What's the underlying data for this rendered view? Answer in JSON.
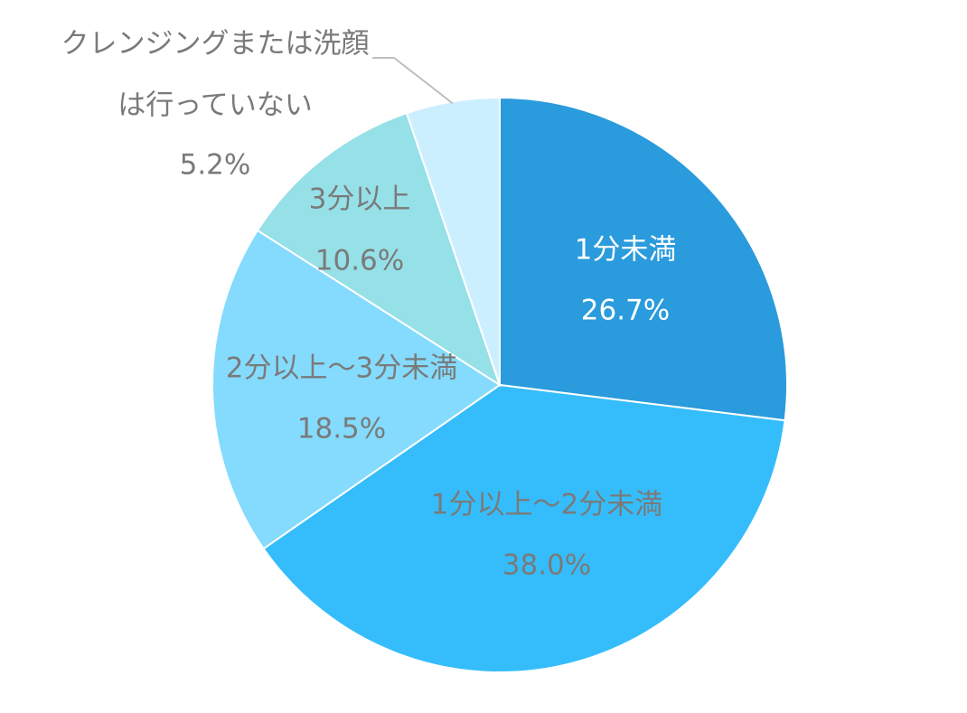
{
  "chart_data": {
    "type": "pie",
    "title": "",
    "start_angle_deg": 0,
    "direction": "clockwise",
    "slices": [
      {
        "label": "1分未満",
        "value": 26.7,
        "value_label": "26.7%",
        "color": "#2a9bdc",
        "label_color": "#ffffff"
      },
      {
        "label": "1分以上～2分未満",
        "value": 38.0,
        "value_label": "38.0%",
        "color": "#35bdfb",
        "label_color": "#7a7a7a"
      },
      {
        "label": "2分以上～3分未満",
        "value": 18.5,
        "value_label": "18.5%",
        "color": "#84dbfd",
        "label_color": "#7a7a7a"
      },
      {
        "label": "3分以上",
        "value": 10.6,
        "value_label": "10.6%",
        "color": "#96e0e8",
        "label_color": "#7a7a7a"
      },
      {
        "label": "クレンジングまたは洗顔\nは行っていない",
        "value": 5.2,
        "value_label": "5.2%",
        "color": "#ccefff",
        "label_color": "#7a7a7a",
        "label_outside": true,
        "leader_line": true
      }
    ],
    "legend": "none",
    "leader_line_color": "#bfbfbf"
  }
}
